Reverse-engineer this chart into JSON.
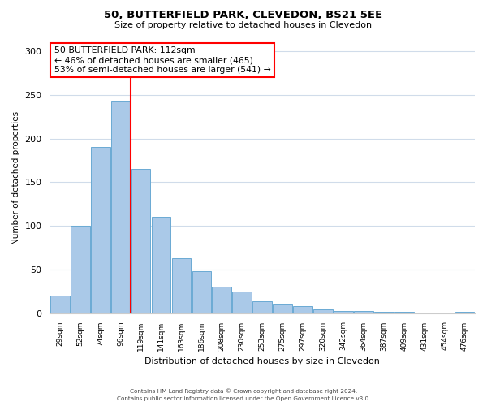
{
  "title": "50, BUTTERFIELD PARK, CLEVEDON, BS21 5EE",
  "subtitle": "Size of property relative to detached houses in Clevedon",
  "xlabel": "Distribution of detached houses by size in Clevedon",
  "ylabel": "Number of detached properties",
  "bar_labels": [
    "29sqm",
    "52sqm",
    "74sqm",
    "96sqm",
    "119sqm",
    "141sqm",
    "163sqm",
    "186sqm",
    "208sqm",
    "230sqm",
    "253sqm",
    "275sqm",
    "297sqm",
    "320sqm",
    "342sqm",
    "364sqm",
    "387sqm",
    "409sqm",
    "431sqm",
    "454sqm",
    "476sqm"
  ],
  "bar_values": [
    20,
    100,
    190,
    243,
    165,
    110,
    63,
    48,
    30,
    25,
    14,
    10,
    8,
    4,
    2,
    2,
    1,
    1,
    0,
    0,
    1
  ],
  "bar_color": "#aac9e8",
  "bar_edge_color": "#6aaad4",
  "vline_index": 4,
  "vline_color": "red",
  "ylim": [
    0,
    310
  ],
  "yticks": [
    0,
    50,
    100,
    150,
    200,
    250,
    300
  ],
  "annotation_title": "50 BUTTERFIELD PARK: 112sqm",
  "annotation_line1": "← 46% of detached houses are smaller (465)",
  "annotation_line2": "53% of semi-detached houses are larger (541) →",
  "footer_line1": "Contains HM Land Registry data © Crown copyright and database right 2024.",
  "footer_line2": "Contains public sector information licensed under the Open Government Licence v3.0.",
  "background_color": "#ffffff",
  "grid_color": "#d0dcea"
}
